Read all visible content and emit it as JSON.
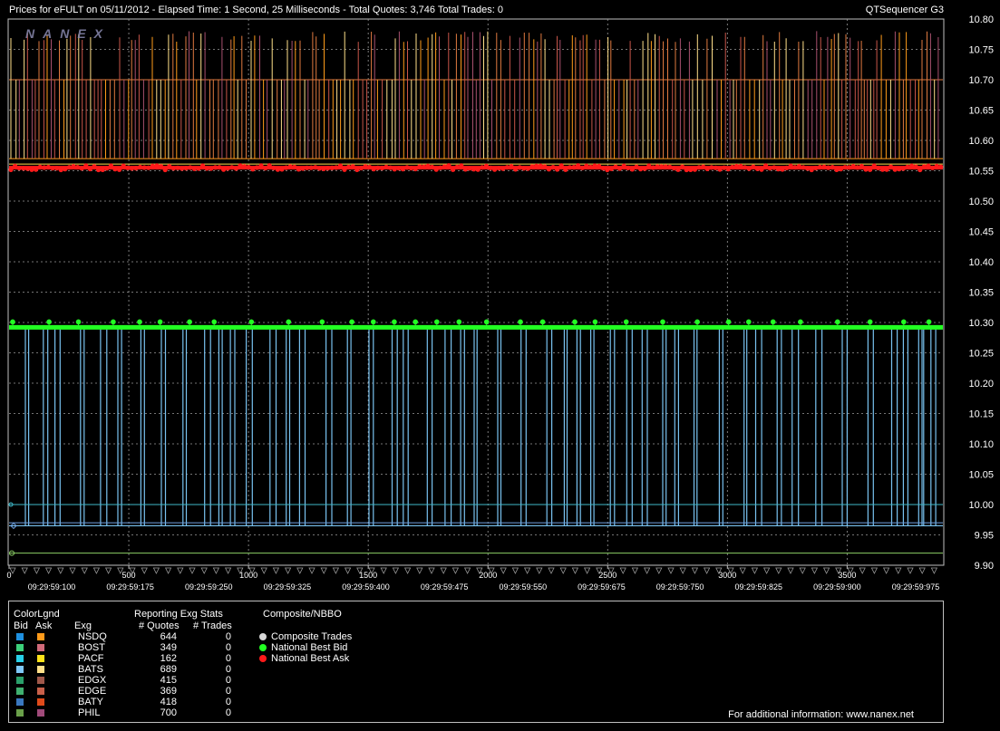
{
  "header": {
    "title": "Prices for  eFULT  on  05/11/2012  -  Elapsed Time: 1 Second, 25 Milliseconds  -  Total Quotes: 3,746  Total Trades: 0",
    "app": "QTSequencer G3",
    "watermark": "NANEX"
  },
  "chart_data": {
    "type": "line",
    "y_ticks": [
      "10.80",
      "10.75",
      "10.70",
      "10.65",
      "10.60",
      "10.55",
      "10.50",
      "10.45",
      "10.40",
      "10.35",
      "10.30",
      "10.25",
      "10.20",
      "10.15",
      "10.10",
      "10.05",
      "10.00",
      "9.95",
      "9.90"
    ],
    "ylim": [
      9.9,
      10.8
    ],
    "x_ticks": [
      "0",
      "500",
      "1000",
      "1500",
      "2000",
      "2500",
      "3000",
      "3500"
    ],
    "xlim": [
      0,
      3900
    ],
    "time_labels": [
      "09:29:59:100",
      "09:29:59:175",
      "09:29:59:250",
      "09:29:59:325",
      "09:29:59:400",
      "09:29:59:475",
      "09:29:59:550",
      "09:29:59:675",
      "09:29:59:750",
      "09:29:59:825",
      "09:29:59:900",
      "09:29:59:975"
    ],
    "series": [
      {
        "name": "National Best Ask",
        "role": "nbo",
        "color": "#ff1a1a",
        "level": 10.555
      },
      {
        "name": "National Best Bid",
        "role": "nbb",
        "color": "#22ff22",
        "level": 10.295
      },
      {
        "role": "ask_quotes_high",
        "colors": [
          "#ff9c1a",
          "#e07a40",
          "#c8564a",
          "#ffe08a",
          "#a8506e"
        ],
        "levels": [
          10.78,
          10.7,
          10.57
        ]
      },
      {
        "role": "bid_quotes",
        "color": "#79c2f0",
        "levels": [
          10.29,
          9.965
        ]
      },
      {
        "role": "bid_flat_lines",
        "colors": [
          "#3fb8c8",
          "#6fa0e0",
          "#8ccf66"
        ],
        "levels": [
          10.0,
          9.97,
          9.92
        ]
      }
    ]
  },
  "legend": {
    "color_lgnd": "ColorLgnd",
    "bid": "Bid",
    "ask": "Ask",
    "reporting": "Reporting Exg Stats",
    "exg": "Exg",
    "quotes": "# Quotes",
    "trades": "# Trades",
    "composite": "Composite/NBBO",
    "rows": [
      {
        "exg": "NSDQ",
        "quotes": "644",
        "trades": "0",
        "bid_color": "#1e90e0",
        "ask_color": "#ff9a1a"
      },
      {
        "exg": "BOST",
        "quotes": "349",
        "trades": "0",
        "bid_color": "#3cd07a",
        "ask_color": "#d06a7a"
      },
      {
        "exg": "PACF",
        "quotes": "162",
        "trades": "0",
        "bid_color": "#28d0e8",
        "ask_color": "#ffe21a"
      },
      {
        "exg": "BATS",
        "quotes": "689",
        "trades": "0",
        "bid_color": "#7fc8f8",
        "ask_color": "#ffe08a"
      },
      {
        "exg": "EDGX",
        "quotes": "415",
        "trades": "0",
        "bid_color": "#2aa06a",
        "ask_color": "#a0584a"
      },
      {
        "exg": "EDGE",
        "quotes": "369",
        "trades": "0",
        "bid_color": "#40b070",
        "ask_color": "#c8604a"
      },
      {
        "exg": "BATY",
        "quotes": "418",
        "trades": "0",
        "bid_color": "#3a78c0",
        "ask_color": "#e04a1a"
      },
      {
        "exg": "PHIL",
        "quotes": "700",
        "trades": "0",
        "bid_color": "#6aa04a",
        "ask_color": "#a04a7a"
      }
    ],
    "composite_items": [
      {
        "label": "Composite Trades",
        "color": "#d8d8d8"
      },
      {
        "label": "National Best Bid",
        "color": "#22ff22"
      },
      {
        "label": "National Best Ask",
        "color": "#ff1a1a"
      }
    ],
    "footer": "For additional information: www.nanex.net"
  }
}
